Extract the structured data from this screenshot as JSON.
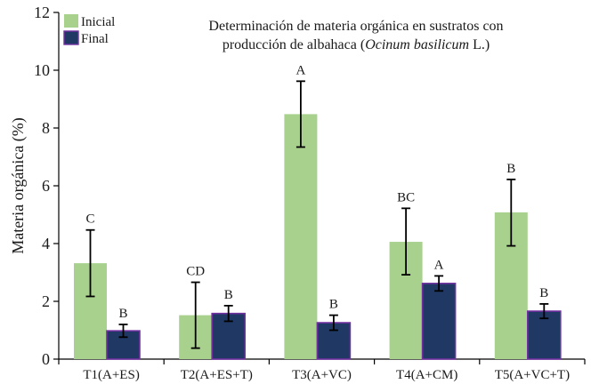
{
  "chart_data": {
    "type": "bar",
    "title_lines": [
      {
        "segments": [
          {
            "text": "Determinación de materia orgánica en sustratos  con",
            "italic": false
          }
        ]
      },
      {
        "segments": [
          {
            "text": "producción de albahaca (",
            "italic": false
          },
          {
            "text": "Ocinum basilicum",
            "italic": true
          },
          {
            "text": " L.)",
            "italic": false
          }
        ]
      }
    ],
    "ylabel": "Materia orgánica (%)",
    "xlabel": "",
    "ylim": [
      0,
      12
    ],
    "yticks": [
      "0",
      "2",
      "4",
      "6",
      "8",
      "10",
      "12"
    ],
    "grid": false,
    "legend_position": "top-left",
    "categories": [
      "T1(A+ES)",
      "T2(A+ES+T)",
      "T3(A+VC)",
      "T4(A+CM)",
      "T5(A+VC+T)"
    ],
    "series": [
      {
        "name": "Inicial",
        "color": "#a9d18e",
        "stroke": "none",
        "values": [
          3.32,
          1.52,
          8.48,
          4.06,
          5.08
        ],
        "err_low": [
          2.17,
          0.38,
          7.34,
          2.92,
          3.92
        ],
        "err_high": [
          4.47,
          2.66,
          9.62,
          5.22,
          6.22
        ],
        "labels": [
          "C",
          "CD",
          "A",
          "BC",
          "B"
        ]
      },
      {
        "name": "Final",
        "color": "#1f3864",
        "stroke": "#7030a0",
        "values": [
          0.98,
          1.58,
          1.26,
          2.62,
          1.66
        ],
        "err_low": [
          0.76,
          1.31,
          1.0,
          2.36,
          1.41
        ],
        "err_high": [
          1.2,
          1.85,
          1.52,
          2.88,
          1.91
        ],
        "labels": [
          "B",
          "B",
          "B",
          "A",
          "B"
        ]
      }
    ]
  }
}
